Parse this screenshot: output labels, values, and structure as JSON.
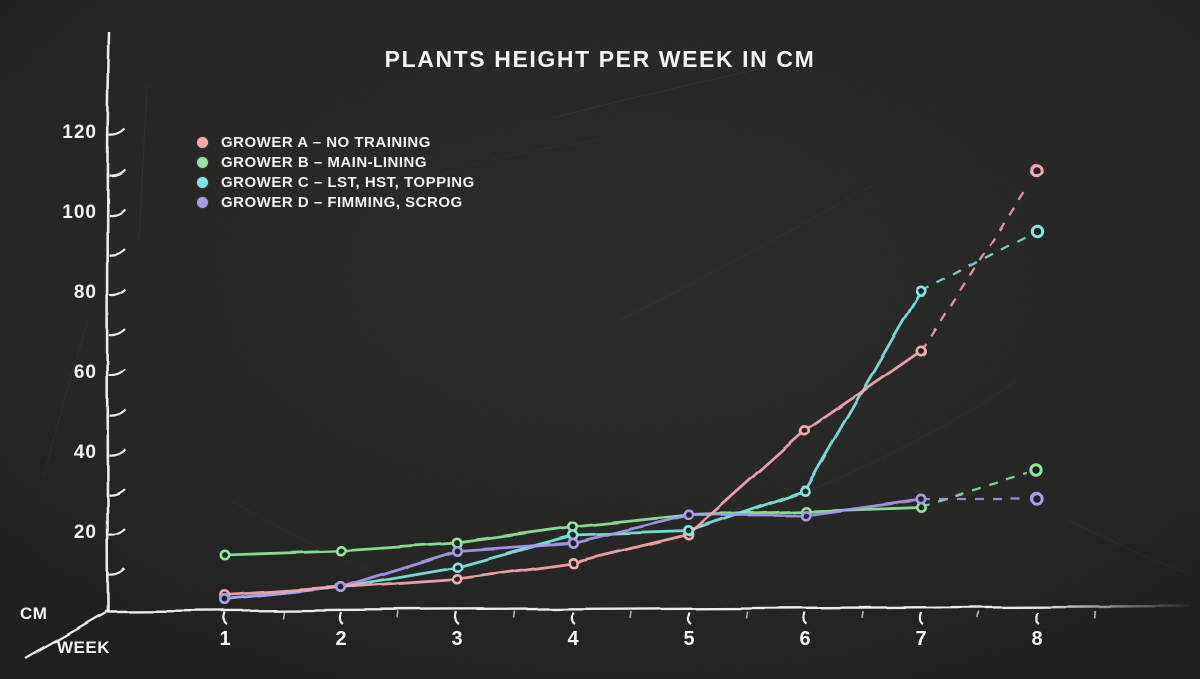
{
  "title": "PLANTS HEIGHT PER WEEK IN CM",
  "background_color": "#1f1f1e",
  "axis_color": "#edebe5",
  "text_color": "#f4f2ed",
  "chart_data": {
    "type": "line",
    "title": "PLANTS HEIGHT PER WEEK IN CM",
    "xlabel": "WEEK",
    "ylabel": "CM",
    "x": [
      1,
      2,
      3,
      4,
      5,
      6,
      7,
      8
    ],
    "y_ticks": [
      20,
      40,
      60,
      80,
      100,
      120
    ],
    "y_minor_tick_step": 10,
    "ylim": [
      0,
      130
    ],
    "xlim": [
      0,
      9
    ],
    "grid": false,
    "legend_position": "top-left",
    "style": "hand-drawn chalkboard, last segment (week 7 to 8) dashed, hollow dot markers",
    "series": [
      {
        "name": "GROWER A – NO TRAINING",
        "color": "#f4a9af",
        "values": [
          4,
          6,
          8,
          12,
          19,
          45,
          65,
          110
        ]
      },
      {
        "name": "GROWER B – MAIN-LINING",
        "color": "#8fe79d",
        "values": [
          14,
          15,
          17,
          21,
          24,
          25,
          26,
          35
        ]
      },
      {
        "name": "GROWER C – LST, HST, TOPPING",
        "color": "#7de7e1",
        "values": [
          3,
          6,
          11,
          19,
          20,
          30,
          80,
          95
        ]
      },
      {
        "name": "GROWER D – FIMMING, SCROG",
        "color": "#a89bec",
        "values": [
          3,
          6,
          15,
          17,
          24,
          24,
          28,
          28
        ]
      }
    ],
    "dashed_segment": {
      "from_week": 7,
      "to_week": 8
    }
  }
}
